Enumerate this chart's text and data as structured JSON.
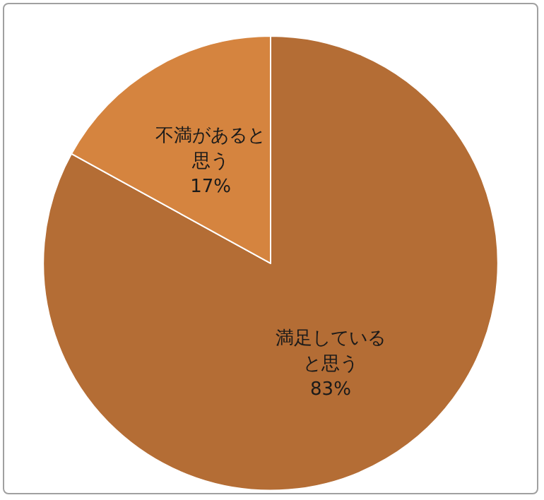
{
  "chart_data": {
    "type": "pie",
    "categories": [
      "満足していると思う",
      "不満があると思う"
    ],
    "values": [
      83,
      17
    ],
    "colors": [
      "#b46d35",
      "#d5843f"
    ],
    "value_labels": [
      "83%",
      "17%"
    ],
    "legend": false
  }
}
